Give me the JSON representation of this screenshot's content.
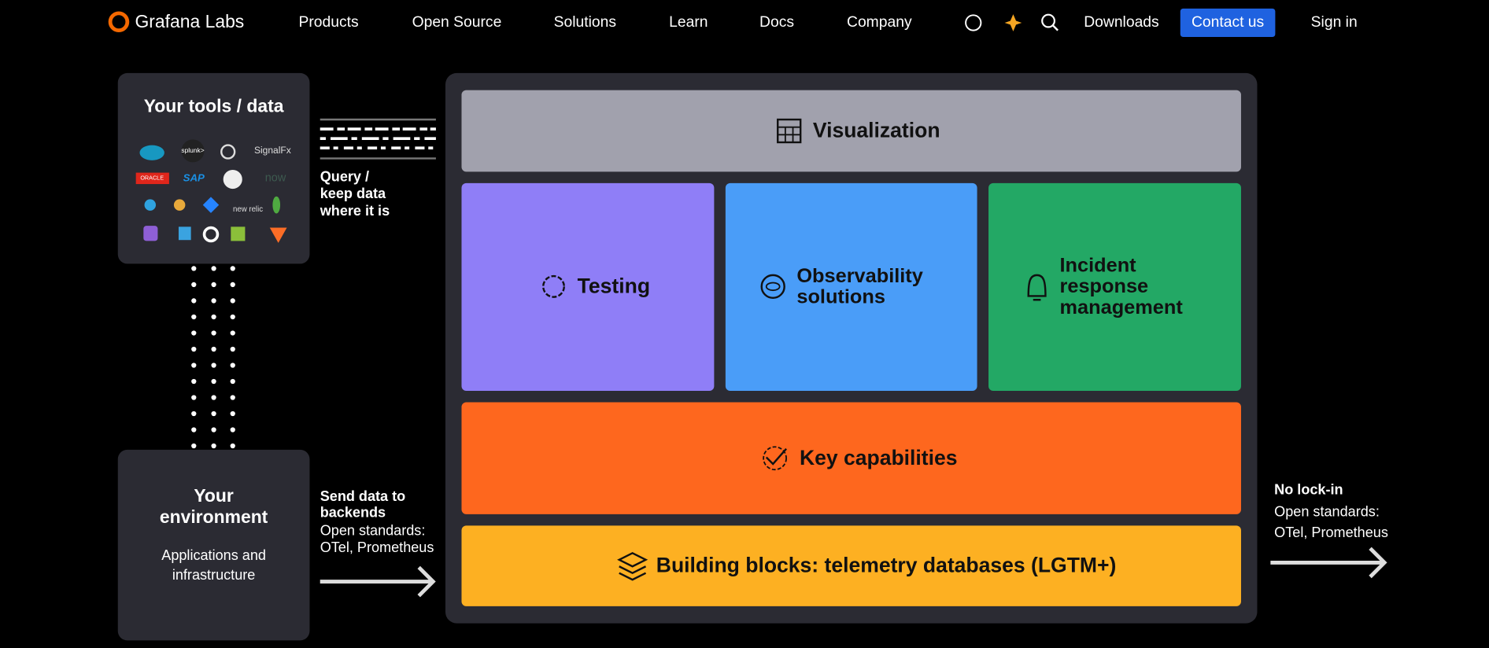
{
  "nav": {
    "brand": "Grafana Labs",
    "links": [
      "Products",
      "Open Source",
      "Solutions",
      "Learn",
      "Docs",
      "Company"
    ],
    "downloads": "Downloads",
    "contact": "Contact us",
    "signin": "Sign in"
  },
  "diagram": {
    "tools": {
      "title": "Your tools / data",
      "logos": [
        "splunk>",
        "SignalFx",
        "ORACLE",
        "SAP",
        "now",
        "new relic"
      ]
    },
    "query": [
      "Query /",
      "keep data",
      "where it is"
    ],
    "environment": {
      "title": [
        "Your",
        "environment"
      ],
      "subtitle": [
        "Applications and",
        "infrastructure"
      ]
    },
    "send": {
      "title": [
        "Send data to",
        "backends"
      ],
      "note": [
        "Open standards:",
        "OTel, Prometheus"
      ]
    },
    "layers": {
      "visualization": "Visualization",
      "testing": "Testing",
      "observability": [
        "Observability",
        "solutions"
      ],
      "incident": [
        "Incident",
        "response",
        "management"
      ],
      "capabilities": "Key capabilities",
      "building": "Building blocks: telemetry databases (LGTM+)"
    },
    "nolockin": {
      "title": "No lock-in",
      "note": [
        "Open standards:",
        "OTel, Prometheus"
      ]
    }
  }
}
